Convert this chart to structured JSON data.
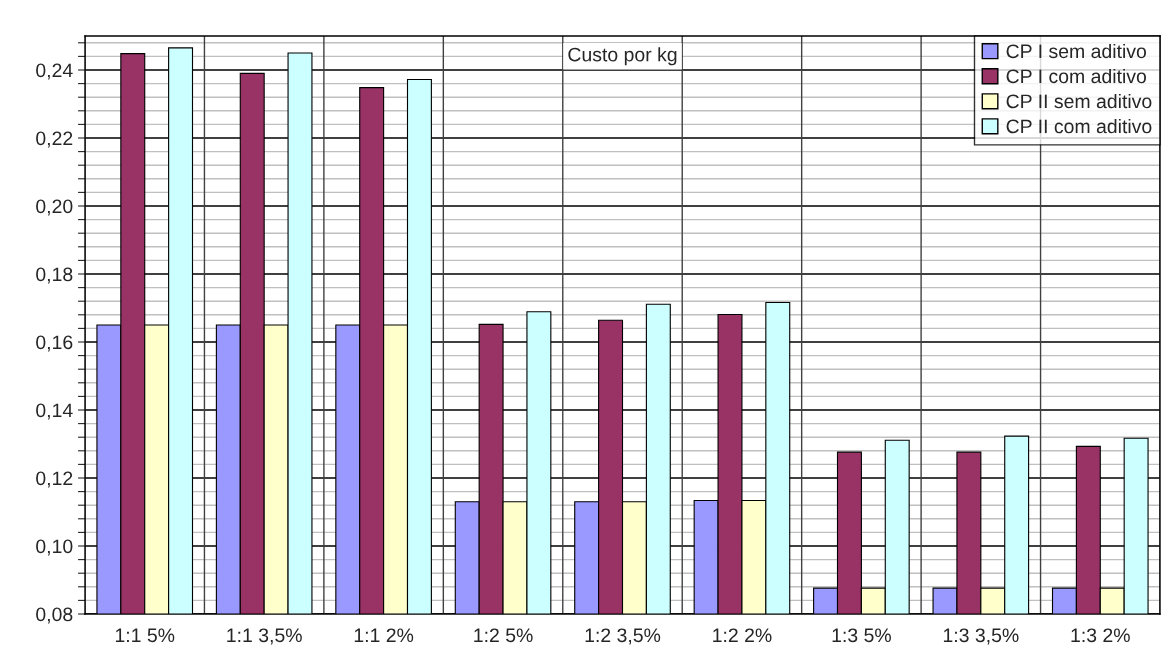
{
  "chart_data": {
    "type": "bar",
    "title": "Custo por kg",
    "categories": [
      "1:1 5%",
      "1:1 3,5%",
      "1:1 2%",
      "1:2 5%",
      "1:2 3,5%",
      "1:2 2%",
      "1:3 5%",
      "1:3 3,5%",
      "1:3 2%"
    ],
    "series": [
      {
        "name": "CP I sem aditivo",
        "color": "#9999ff",
        "values": [
          0.165,
          0.165,
          0.165,
          0.113,
          0.113,
          0.1134,
          0.0876,
          0.0876,
          0.0876
        ]
      },
      {
        "name": "CP I com aditivo",
        "color": "#993366",
        "values": [
          0.2448,
          0.239,
          0.2348,
          0.1652,
          0.1664,
          0.1681,
          0.1276,
          0.1276,
          0.1293
        ]
      },
      {
        "name": "CP II sem aditivo",
        "color": "#ffffcc",
        "values": [
          0.165,
          0.165,
          0.165,
          0.113,
          0.113,
          0.1134,
          0.0876,
          0.0876,
          0.0876
        ]
      },
      {
        "name": "CP II com aditivo",
        "color": "#ccffff",
        "values": [
          0.2465,
          0.245,
          0.2372,
          0.1689,
          0.1711,
          0.1716,
          0.1311,
          0.1323,
          0.1317
        ]
      }
    ],
    "ylim": [
      0.08,
      0.25
    ],
    "yticks": [
      {
        "value": 0.08,
        "label": "0,08"
      },
      {
        "value": 0.084,
        "label": null
      },
      {
        "value": 0.088,
        "label": null
      },
      {
        "value": 0.092,
        "label": null
      },
      {
        "value": 0.096,
        "label": null
      },
      {
        "value": 0.1,
        "label": "0,10"
      },
      {
        "value": 0.104,
        "label": null
      },
      {
        "value": 0.108,
        "label": null
      },
      {
        "value": 0.112,
        "label": null
      },
      {
        "value": 0.116,
        "label": null
      },
      {
        "value": 0.12,
        "label": "0,12"
      },
      {
        "value": 0.124,
        "label": null
      },
      {
        "value": 0.128,
        "label": null
      },
      {
        "value": 0.132,
        "label": null
      },
      {
        "value": 0.136,
        "label": null
      },
      {
        "value": 0.14,
        "label": "0,14"
      },
      {
        "value": 0.144,
        "label": null
      },
      {
        "value": 0.148,
        "label": null
      },
      {
        "value": 0.152,
        "label": null
      },
      {
        "value": 0.156,
        "label": null
      },
      {
        "value": 0.16,
        "label": "0,16"
      },
      {
        "value": 0.164,
        "label": null
      },
      {
        "value": 0.168,
        "label": null
      },
      {
        "value": 0.172,
        "label": null
      },
      {
        "value": 0.176,
        "label": null
      },
      {
        "value": 0.18,
        "label": "0,18"
      },
      {
        "value": 0.184,
        "label": null
      },
      {
        "value": 0.188,
        "label": null
      },
      {
        "value": 0.192,
        "label": null
      },
      {
        "value": 0.196,
        "label": null
      },
      {
        "value": 0.2,
        "label": "0,20"
      },
      {
        "value": 0.204,
        "label": null
      },
      {
        "value": 0.208,
        "label": null
      },
      {
        "value": 0.212,
        "label": null
      },
      {
        "value": 0.216,
        "label": null
      },
      {
        "value": 0.22,
        "label": "0,22"
      },
      {
        "value": 0.224,
        "label": null
      },
      {
        "value": 0.228,
        "label": null
      },
      {
        "value": 0.232,
        "label": null
      },
      {
        "value": 0.236,
        "label": null
      },
      {
        "value": 0.24,
        "label": "0,24"
      },
      {
        "value": 0.244,
        "label": null
      },
      {
        "value": 0.248,
        "label": null
      }
    ],
    "grid": true,
    "legend": "top right"
  }
}
